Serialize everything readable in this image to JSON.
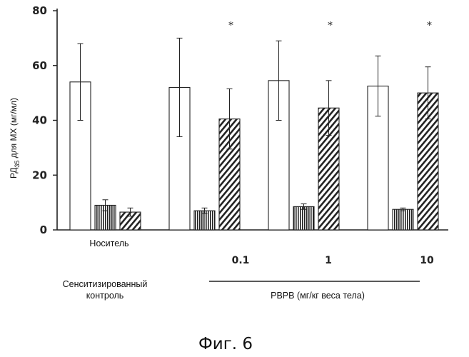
{
  "chart_data": {
    "type": "bar",
    "ylabel": "РД35 для МХ (мг/мл)",
    "ylabel_main": "РД",
    "ylabel_sub": "35",
    "ylabel_rest": " для МХ (мг/мл)",
    "ylim": [
      0,
      80
    ],
    "yticks": [
      "0",
      "20",
      "40",
      "60",
      "80"
    ],
    "groups": [
      {
        "label": "Носитель",
        "dose": "",
        "bars": [
          {
            "pattern": "open",
            "value": 54,
            "err": 14
          },
          {
            "pattern": "vertical",
            "value": 9,
            "err": 2
          },
          {
            "pattern": "diagonal",
            "value": 6.5,
            "err": 1.5
          }
        ],
        "star": ""
      },
      {
        "label": "",
        "dose": "0.1",
        "bars": [
          {
            "pattern": "open",
            "value": 52,
            "err": 18
          },
          {
            "pattern": "vertical",
            "value": 7,
            "err": 1
          },
          {
            "pattern": "diagonal",
            "value": 40.5,
            "err": 11
          }
        ],
        "star": "*"
      },
      {
        "label": "",
        "dose": "1",
        "bars": [
          {
            "pattern": "open",
            "value": 54.5,
            "err": 14.5
          },
          {
            "pattern": "vertical",
            "value": 8.5,
            "err": 1
          },
          {
            "pattern": "diagonal",
            "value": 44.5,
            "err": 10
          }
        ],
        "star": "*"
      },
      {
        "label": "",
        "dose": "10",
        "bars": [
          {
            "pattern": "open",
            "value": 52.5,
            "err": 11
          },
          {
            "pattern": "vertical",
            "value": 7.5,
            "err": 0.5
          },
          {
            "pattern": "diagonal",
            "value": 50,
            "err": 9.5
          }
        ],
        "star": "*"
      }
    ],
    "bottom_left_line1": "Сенситизированный",
    "bottom_left_line2": "контроль",
    "bottom_right": "PBPB (мг/кг веса тела)",
    "caption": "Фиг. 6"
  }
}
